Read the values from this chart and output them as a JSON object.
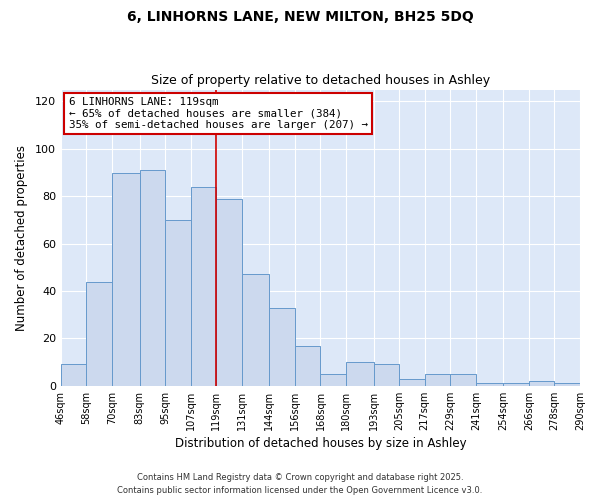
{
  "title": "6, LINHORNS LANE, NEW MILTON, BH25 5DQ",
  "subtitle": "Size of property relative to detached houses in Ashley",
  "xlabel": "Distribution of detached houses by size in Ashley",
  "ylabel": "Number of detached properties",
  "bar_color": "#ccd9ee",
  "bar_edge_color": "#6699cc",
  "background_color": "#dde8f8",
  "grid_color": "#ffffff",
  "bin_edges": [
    46,
    58,
    70,
    83,
    95,
    107,
    119,
    131,
    144,
    156,
    168,
    180,
    193,
    205,
    217,
    229,
    241,
    254,
    266,
    278,
    290
  ],
  "bar_heights": [
    9,
    44,
    90,
    91,
    70,
    84,
    79,
    47,
    33,
    17,
    5,
    10,
    9,
    3,
    5,
    5,
    1,
    1,
    2,
    1
  ],
  "red_line_x": 119,
  "annotation_title": "6 LINHORNS LANE: 119sqm",
  "annotation_line1": "← 65% of detached houses are smaller (384)",
  "annotation_line2": "35% of semi-detached houses are larger (207) →",
  "annotation_box_color": "#ffffff",
  "annotation_box_edge": "#cc0000",
  "red_line_color": "#cc0000",
  "ylim": [
    0,
    125
  ],
  "yticks": [
    0,
    20,
    40,
    60,
    80,
    100,
    120
  ],
  "footer1": "Contains HM Land Registry data © Crown copyright and database right 2025.",
  "footer2": "Contains public sector information licensed under the Open Government Licence v3.0."
}
